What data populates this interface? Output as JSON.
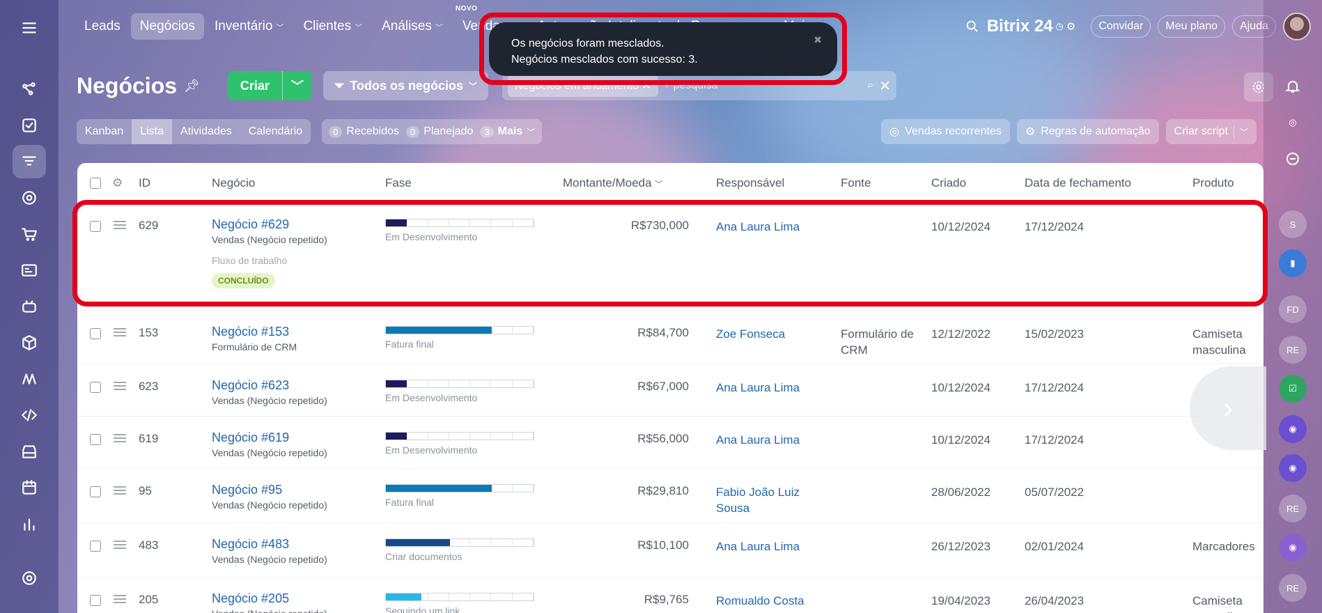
{
  "nav": {
    "items": [
      {
        "label": "Leads",
        "active": false,
        "has_dropdown": false
      },
      {
        "label": "Negócios",
        "active": true,
        "has_dropdown": false
      },
      {
        "label": "Inventário",
        "active": false,
        "has_dropdown": true
      },
      {
        "label": "Clientes",
        "active": false,
        "has_dropdown": true
      },
      {
        "label": "Análises",
        "active": false,
        "has_dropdown": true
      },
      {
        "label": "Vendas",
        "active": false,
        "has_dropdown": true,
        "badge": "NOVO"
      },
      {
        "label": "Automação Inteligente de Processos",
        "active": false,
        "has_dropdown": true
      },
      {
        "label": "Mais",
        "active": false,
        "has_dropdown": true
      }
    ],
    "brand": "Bitrix 24",
    "invite_label": "Convidar",
    "plan_label": "Meu plano",
    "help_label": "Ajuda"
  },
  "toast": {
    "line1": "Os negócios foram mesclados.",
    "line2": "Negócios mesclados com sucesso: 3."
  },
  "header": {
    "title": "Negócios",
    "create_label": "Criar",
    "filter_label": "Todos os negócios",
    "chip_label": "Negócios em andamento",
    "search_placeholder": "+ pesquisa"
  },
  "views": {
    "tabs": [
      {
        "label": "Kanban",
        "active": false
      },
      {
        "label": "Lista",
        "active": true
      },
      {
        "label": "Atividades",
        "active": false
      },
      {
        "label": "Calendário",
        "active": false
      }
    ],
    "counters": [
      {
        "count": "0",
        "label": "Recebidos"
      },
      {
        "count": "0",
        "label": "Planejado"
      },
      {
        "count": "3",
        "label": "Mais"
      }
    ],
    "recurring_label": "Vendas recorrentes",
    "automation_label": "Regras de automação",
    "script_label": "Criar script"
  },
  "table": {
    "headers": {
      "id": "ID",
      "deal": "Negócio",
      "stage": "Fase",
      "amount": "Montante/Moeda",
      "responsible": "Responsável",
      "source": "Fonte",
      "created": "Criado",
      "close_date": "Data de fechamento",
      "product": "Produto"
    },
    "rows": [
      {
        "id": "629",
        "deal": "Negócio #629",
        "sub": "Vendas (Negócio repetido)",
        "workflow": "Fluxo de trabalho",
        "badge": "CONCLUÍDO",
        "stage": "Em Desenvolvimento",
        "stage_fill": 0.14,
        "stage_color": "#1e1a5c",
        "amount": "R$730,000",
        "responsible": "Ana Laura Lima",
        "source": "",
        "created": "10/12/2024",
        "close": "17/12/2024",
        "product": ""
      },
      {
        "id": "153",
        "deal": "Negócio #153",
        "sub": "Formulário de CRM",
        "stage": "Fatura final",
        "stage_fill": 0.71,
        "stage_color": "#0b7ab5",
        "amount": "R$84,700",
        "responsible": "Zoe Fonseca",
        "source": "Formulário de CRM",
        "created": "12/12/2022",
        "close": "15/02/2023",
        "product": "Camiseta masculina"
      },
      {
        "id": "623",
        "deal": "Negócio #623",
        "sub": "Vendas (Negócio repetido)",
        "stage": "Em Desenvolvimento",
        "stage_fill": 0.14,
        "stage_color": "#1e1a5c",
        "amount": "R$67,000",
        "responsible": "Ana Laura Lima",
        "source": "",
        "created": "10/12/2024",
        "close": "17/12/2024",
        "product": ""
      },
      {
        "id": "619",
        "deal": "Negócio #619",
        "sub": "Vendas (Negócio repetido)",
        "stage": "Em Desenvolvimento",
        "stage_fill": 0.14,
        "stage_color": "#1e1a5c",
        "amount": "R$56,000",
        "responsible": "Ana Laura Lima",
        "source": "",
        "created": "10/12/2024",
        "close": "17/12/2024",
        "product": ""
      },
      {
        "id": "95",
        "deal": "Negócio #95",
        "sub": "Vendas (Negócio repetido)",
        "stage": "Fatura final",
        "stage_fill": 0.71,
        "stage_color": "#0b7ab5",
        "amount": "R$29,810",
        "responsible": "Fabio João Luiz Sousa",
        "source": "",
        "created": "28/06/2022",
        "close": "05/07/2022",
        "product": ""
      },
      {
        "id": "483",
        "deal": "Negócio #483",
        "sub": "Vendas (Negócio repetido)",
        "stage": "Criar documentos",
        "stage_fill": 0.43,
        "stage_color": "#144a8c",
        "amount": "R$10,100",
        "responsible": "Ana Laura Lima",
        "source": "",
        "created": "26/12/2023",
        "close": "02/01/2024",
        "product": "Marcadores"
      },
      {
        "id": "205",
        "deal": "Negócio #205",
        "sub": "Vendas (Negócio repetido)",
        "stage": "Seguindo um link",
        "stage_fill": 0.24,
        "stage_color": "#2bb6ea",
        "amount": "R$9,765",
        "responsible": "Romualdo Costa",
        "source": "",
        "created": "19/04/2023",
        "close": "26/04/2023",
        "product": "Camiseta masculina"
      }
    ]
  },
  "right_rail": [
    "S",
    "FD",
    "RE",
    "RE",
    "RE"
  ],
  "colors": {
    "accent_green": "#2fc26e",
    "link_blue": "#2067b0",
    "highlight_red": "#e3001b"
  }
}
